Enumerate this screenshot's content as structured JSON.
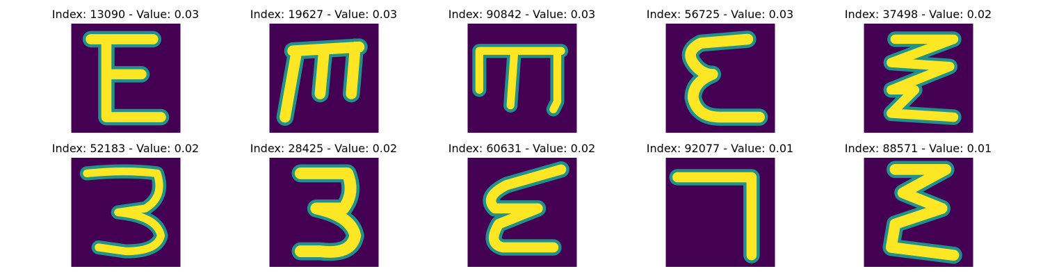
{
  "figure": {
    "colors": {
      "background": "#440154",
      "stroke_core": "#fde725",
      "stroke_mid": "#5ec962",
      "stroke_edge": "#21918c",
      "stroke_outer": "#3b528b"
    },
    "panels": [
      {
        "title": "Index: 13090 - Value: 0.03",
        "glyph": "E-with-bars"
      },
      {
        "title": "Index: 19627 - Value: 0.03",
        "glyph": "m-shape"
      },
      {
        "title": "Index: 90842 - Value: 0.03",
        "glyph": "m-shape-thin"
      },
      {
        "title": "Index: 56725 - Value: 0.03",
        "glyph": "epsilon"
      },
      {
        "title": "Index: 37498 - Value: 0.02",
        "glyph": "zigzag-E"
      },
      {
        "title": "Index: 52183 - Value: 0.02",
        "glyph": "three"
      },
      {
        "title": "Index: 28425 - Value: 0.02",
        "glyph": "three-bold"
      },
      {
        "title": "Index: 60631 - Value: 0.02",
        "glyph": "epsilon-slanted"
      },
      {
        "title": "Index: 92077 - Value: 0.01",
        "glyph": "seven-like"
      },
      {
        "title": "Index: 88571 - Value: 0.01",
        "glyph": "sigma-E"
      }
    ]
  }
}
